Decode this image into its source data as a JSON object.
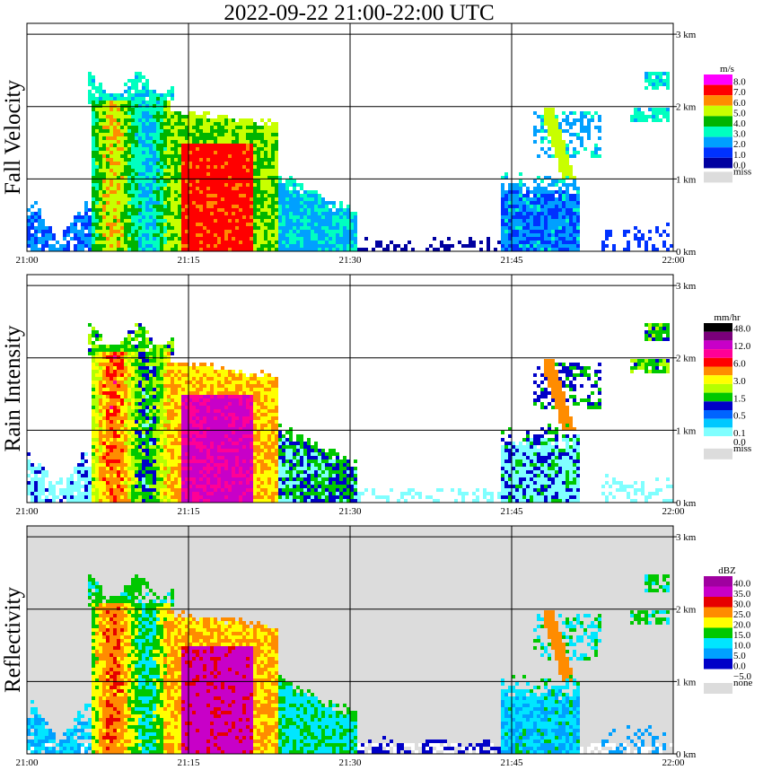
{
  "title": "2022-09-22   21:00-22:00 UTC",
  "chart_data": [
    {
      "type": "heatmap",
      "name": "Fall Velocity",
      "units": "m/s",
      "x_ticks": [
        "21:00",
        "21:15",
        "21:30",
        "21:45",
        "22:00"
      ],
      "y_ticks": [
        "0 km",
        "1 km",
        "2 km",
        "3 km"
      ],
      "ylim": [
        0,
        3
      ],
      "colorbar": [
        {
          "label": "8.0",
          "color": "#ff00ff"
        },
        {
          "label": "7.0",
          "color": "#ff0000"
        },
        {
          "label": "6.0",
          "color": "#ff8c00"
        },
        {
          "label": "5.0",
          "color": "#c8ff00"
        },
        {
          "label": "4.0",
          "color": "#00b400"
        },
        {
          "label": "3.0",
          "color": "#00ffc0"
        },
        {
          "label": "2.0",
          "color": "#00a0ff"
        },
        {
          "label": "1.0",
          "color": "#0032ff"
        },
        {
          "label": "0.0",
          "color": "#0000a0"
        },
        {
          "label": "miss",
          "color": "#dcdcdc"
        }
      ]
    },
    {
      "type": "heatmap",
      "name": "Rain Intensity",
      "units": "mm/hr",
      "x_ticks": [
        "21:00",
        "21:15",
        "21:30",
        "21:45",
        "22:00"
      ],
      "y_ticks": [
        "0 km",
        "1 km",
        "2 km",
        "3 km"
      ],
      "ylim": [
        0,
        3
      ],
      "colorbar": [
        {
          "label": "48.0",
          "color": "#000000"
        },
        {
          "label": "",
          "color": "#7a007a"
        },
        {
          "label": "12.0",
          "color": "#c800c8"
        },
        {
          "label": "",
          "color": "#ff0096"
        },
        {
          "label": "6.0",
          "color": "#ff0000"
        },
        {
          "label": "",
          "color": "#ff8c00"
        },
        {
          "label": "3.0",
          "color": "#ffff00"
        },
        {
          "label": "",
          "color": "#b4ff00"
        },
        {
          "label": "1.5",
          "color": "#00c800"
        },
        {
          "label": "",
          "color": "#0000c8"
        },
        {
          "label": "0.5",
          "color": "#0064ff"
        },
        {
          "label": "",
          "color": "#00c8ff"
        },
        {
          "label": "0.1",
          "color": "#80ffff"
        },
        {
          "label": "0.0",
          "color": "#ffffff"
        },
        {
          "label": "miss",
          "color": "#dcdcdc"
        }
      ]
    },
    {
      "type": "heatmap",
      "name": "Reflectivity",
      "units": "dBZ",
      "x_ticks": [
        "21:00",
        "21:15",
        "21:30",
        "21:45",
        "22:00"
      ],
      "y_ticks": [
        "0 km",
        "1 km",
        "2 km",
        "3 km"
      ],
      "ylim": [
        0,
        3
      ],
      "colorbar": [
        {
          "label": "40.0",
          "color": "#a000a0"
        },
        {
          "label": "35.0",
          "color": "#c800c8"
        },
        {
          "label": "30.0",
          "color": "#e60000"
        },
        {
          "label": "25.0",
          "color": "#ff8c00"
        },
        {
          "label": "20.0",
          "color": "#ffff00"
        },
        {
          "label": "15.0",
          "color": "#00c800"
        },
        {
          "label": "10.0",
          "color": "#00e6ff"
        },
        {
          "label": "5.0",
          "color": "#00a0ff"
        },
        {
          "label": "0.0",
          "color": "#0000c8"
        },
        {
          "label": "−5.0",
          "color": "#ffffff"
        },
        {
          "label": "none",
          "color": "#dcdcdc"
        }
      ]
    }
  ]
}
